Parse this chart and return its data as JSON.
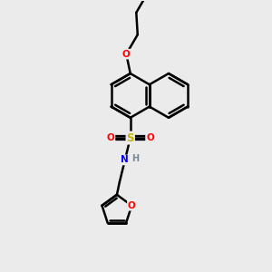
{
  "background_color": "#ebebeb",
  "bond_color": "#000000",
  "bond_width": 1.8,
  "atom_colors": {
    "O": "#ff0000",
    "S": "#c8b400",
    "N": "#0000ee",
    "H": "#778899",
    "C": "#000000"
  },
  "figsize": [
    3.0,
    3.0
  ],
  "dpi": 100,
  "xlim": [
    0,
    10
  ],
  "ylim": [
    0,
    10
  ]
}
